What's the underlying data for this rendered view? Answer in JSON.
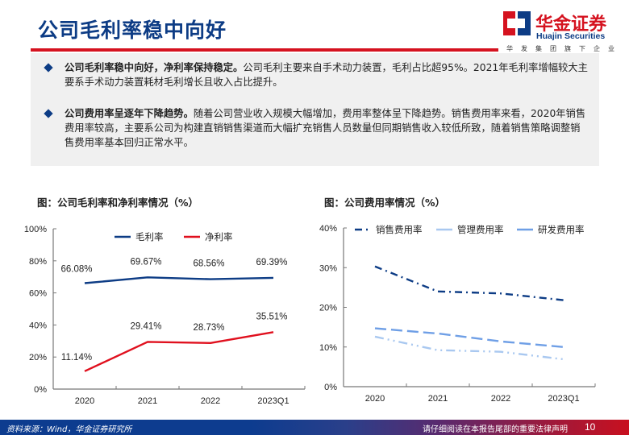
{
  "header": {
    "title": "公司毛利率稳中向好",
    "logo": {
      "cn": "华金证券",
      "en": "Huajin Securities",
      "sub": "华发集团旗下企业",
      "colors": {
        "red": "#d5121f",
        "blue": "#0d3c85"
      }
    }
  },
  "summary": {
    "bullets": [
      {
        "bold": "公司毛利率稳中向好，净利率保持稳定。",
        "text": "公司毛利主要来自手术动力装置，毛利占比超95%。2021年毛利率增幅较大主要系手术动力装置耗材毛利增长且收入占比提升。"
      },
      {
        "bold": "公司费用率呈逐年下降趋势。",
        "text": "随着公司营业收入规模大幅增加，费用率整体呈下降趋势。销售费用率来看，2020年销售费用率较高，主要系公司为构建直销销售渠道而大幅扩充销售人员数量但同期销售收入较低所致，随着销售策略调整销售费用率基本回归正常水平。"
      }
    ]
  },
  "footer": {
    "source": "资料来源：Wind，华金证券研究所",
    "disclaimer": "请仔细阅读在本报告尾部的重要法律声明",
    "page_number": "10"
  },
  "chart_data": [
    {
      "type": "line",
      "title": "图：公司毛利率和净利率情况（%）",
      "categories": [
        "2020",
        "2021",
        "2022",
        "2023Q1"
      ],
      "series": [
        {
          "name": "毛利率",
          "values": [
            66.08,
            69.67,
            68.56,
            69.39
          ],
          "labels": [
            "66.08%",
            "69.67%",
            "68.56%",
            "69.39%"
          ],
          "color": "#0d3c85",
          "style": "solid"
        },
        {
          "name": "净利率",
          "values": [
            11.14,
            29.41,
            28.73,
            35.51
          ],
          "labels": [
            "11.14%",
            "29.41%",
            "28.73%",
            "35.51%"
          ],
          "color": "#e0101e",
          "style": "solid"
        }
      ],
      "yticks": [
        "0%",
        "20%",
        "40%",
        "60%",
        "80%",
        "100%"
      ],
      "ylim": [
        0,
        100
      ],
      "xlabel": "",
      "ylabel": "",
      "legend": "top-center",
      "grid": false
    },
    {
      "type": "line",
      "title": "图：公司费用率情况（%）",
      "categories": [
        "2020",
        "2021",
        "2022",
        "2023Q1"
      ],
      "series": [
        {
          "name": "销售费用率",
          "values": [
            30.3,
            24.0,
            23.5,
            21.8
          ],
          "color": "#0d3c85",
          "style": "dash-dot"
        },
        {
          "name": "管理费用率",
          "values": [
            12.6,
            9.2,
            8.8,
            6.9
          ],
          "color": "#a9c8f0",
          "style": "dash-dot-dot"
        },
        {
          "name": "研发费用率",
          "values": [
            14.7,
            13.4,
            11.4,
            10.0
          ],
          "color": "#6f9fe6",
          "style": "long-dash"
        }
      ],
      "yticks": [
        "0%",
        "10%",
        "20%",
        "30%",
        "40%"
      ],
      "ylim": [
        0,
        40
      ],
      "xlabel": "",
      "ylabel": "",
      "legend": "top",
      "grid": false
    }
  ]
}
